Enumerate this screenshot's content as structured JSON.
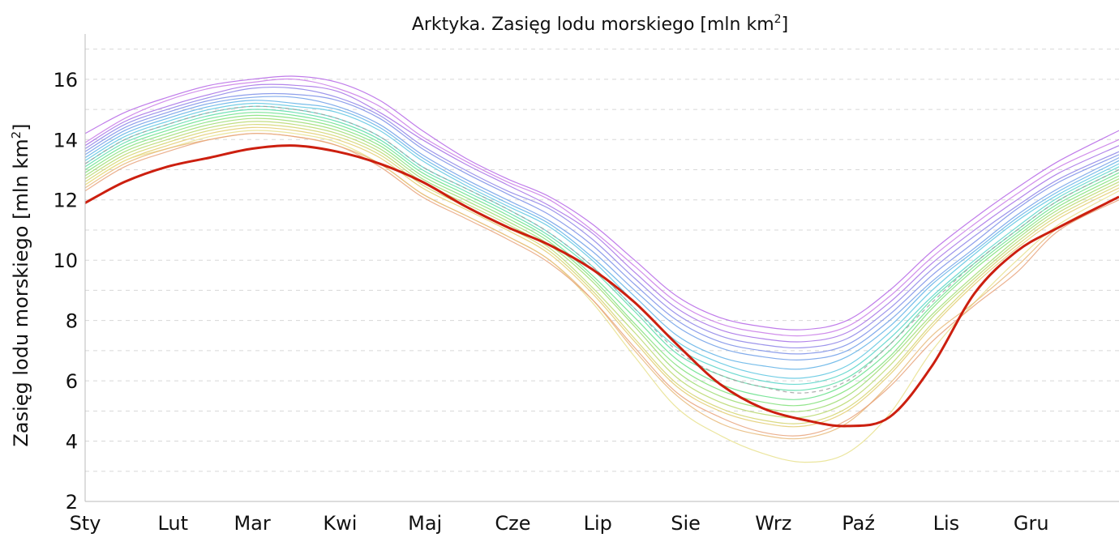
{
  "chart_data": {
    "type": "line",
    "title": "Arktyka. Zasięg lodu morskiego [mln km",
    "title_sup": "2",
    "title_tail": "]",
    "ylabel": "Zasięg lodu morskiego [mln km",
    "ylabel_sup": "2",
    "ylabel_tail": "]",
    "xlabel": "",
    "ylim": [
      2,
      17.5
    ],
    "yticks": [
      2,
      4,
      6,
      8,
      10,
      12,
      14,
      16
    ],
    "xlim": [
      1,
      366
    ],
    "month_labels": [
      "Sty",
      "Lut",
      "Mar",
      "Kwi",
      "Maj",
      "Cze",
      "Lip",
      "Sie",
      "Wrz",
      "Paź",
      "Lis",
      "Gru"
    ],
    "month_days": [
      1,
      32,
      60,
      91,
      121,
      152,
      182,
      213,
      244,
      274,
      305,
      335
    ],
    "grid": "horizontal-dashed",
    "legend": "none",
    "highlight_color": "#cc1f0f",
    "mean_color": "#888888",
    "series_days": [
      1,
      15,
      30,
      45,
      60,
      75,
      90,
      105,
      120,
      135,
      150,
      165,
      180,
      195,
      210,
      225,
      240,
      255,
      270,
      285,
      300,
      315,
      330,
      345,
      366
    ],
    "series": [
      {
        "color": "#b565e6",
        "values": [
          14.2,
          14.9,
          15.4,
          15.8,
          16.0,
          16.1,
          15.9,
          15.3,
          14.3,
          13.4,
          12.7,
          12.1,
          11.2,
          10.0,
          8.8,
          8.1,
          7.8,
          7.7,
          8.0,
          9.0,
          10.3,
          11.4,
          12.4,
          13.3,
          14.3
        ]
      },
      {
        "color": "#c97be8",
        "values": [
          13.9,
          14.7,
          15.3,
          15.7,
          15.9,
          16.0,
          15.7,
          15.1,
          14.1,
          13.3,
          12.6,
          12.0,
          11.0,
          9.8,
          8.6,
          7.9,
          7.6,
          7.5,
          7.8,
          8.8,
          10.1,
          11.2,
          12.2,
          13.1,
          14.0
        ]
      },
      {
        "color": "#a56ee6",
        "values": [
          13.8,
          14.6,
          15.1,
          15.5,
          15.8,
          15.8,
          15.6,
          14.9,
          14.0,
          13.2,
          12.5,
          11.8,
          10.9,
          9.6,
          8.4,
          7.7,
          7.4,
          7.3,
          7.6,
          8.6,
          9.9,
          11.0,
          12.0,
          12.9,
          13.8
        ]
      },
      {
        "color": "#8c82e8",
        "values": [
          13.7,
          14.5,
          15.0,
          15.4,
          15.7,
          15.7,
          15.4,
          14.8,
          13.8,
          13.0,
          12.3,
          11.7,
          10.7,
          9.4,
          8.2,
          7.5,
          7.2,
          7.1,
          7.4,
          8.4,
          9.7,
          10.8,
          11.8,
          12.7,
          13.6
        ]
      },
      {
        "color": "#7a8ee8",
        "values": [
          13.6,
          14.4,
          14.9,
          15.3,
          15.5,
          15.5,
          15.3,
          14.7,
          13.7,
          12.9,
          12.2,
          11.5,
          10.5,
          9.2,
          8.0,
          7.3,
          7.0,
          6.9,
          7.2,
          8.2,
          9.5,
          10.6,
          11.7,
          12.6,
          13.5
        ]
      },
      {
        "color": "#6d9ee8",
        "values": [
          13.5,
          14.3,
          14.8,
          15.2,
          15.4,
          15.4,
          15.1,
          14.5,
          13.5,
          12.7,
          12.0,
          11.3,
          10.3,
          9.0,
          7.8,
          7.1,
          6.8,
          6.7,
          7.0,
          8.0,
          9.3,
          10.4,
          11.5,
          12.4,
          13.4
        ]
      },
      {
        "color": "#5fb2e6",
        "values": [
          13.4,
          14.2,
          14.7,
          15.1,
          15.3,
          15.2,
          15.0,
          14.4,
          13.4,
          12.6,
          11.9,
          11.2,
          10.1,
          8.8,
          7.5,
          6.8,
          6.5,
          6.4,
          6.8,
          7.8,
          9.2,
          10.3,
          11.4,
          12.3,
          13.3
        ]
      },
      {
        "color": "#5cc6e0",
        "values": [
          13.3,
          14.1,
          14.6,
          15.0,
          15.2,
          15.1,
          14.9,
          14.3,
          13.3,
          12.5,
          11.8,
          11.1,
          10.0,
          8.6,
          7.3,
          6.6,
          6.2,
          6.1,
          6.5,
          7.6,
          9.0,
          10.2,
          11.3,
          12.2,
          13.2
        ]
      },
      {
        "color": "#55d4c8",
        "values": [
          13.2,
          14.0,
          14.5,
          14.9,
          15.1,
          15.0,
          14.7,
          14.1,
          13.1,
          12.4,
          11.7,
          10.9,
          9.8,
          8.4,
          7.1,
          6.4,
          6.0,
          5.9,
          6.3,
          7.4,
          8.8,
          10.0,
          11.1,
          12.1,
          13.1
        ]
      },
      {
        "color": "#58dca8",
        "values": [
          13.1,
          13.9,
          14.4,
          14.8,
          15.0,
          14.9,
          14.6,
          14.0,
          13.0,
          12.3,
          11.6,
          10.8,
          9.7,
          8.3,
          6.9,
          6.2,
          5.8,
          5.7,
          6.1,
          7.2,
          8.7,
          9.9,
          11.0,
          12.0,
          13.0
        ]
      },
      {
        "color": "#66e08a",
        "values": [
          13.0,
          13.8,
          14.3,
          14.7,
          14.9,
          14.8,
          14.5,
          13.9,
          12.9,
          12.2,
          11.5,
          10.7,
          9.5,
          8.1,
          6.7,
          5.9,
          5.5,
          5.4,
          5.9,
          7.0,
          8.5,
          9.8,
          10.9,
          11.9,
          12.9
        ]
      },
      {
        "color": "#7fe078",
        "values": [
          12.9,
          13.7,
          14.2,
          14.6,
          14.8,
          14.7,
          14.4,
          13.8,
          12.8,
          12.1,
          11.4,
          10.6,
          9.4,
          7.9,
          6.5,
          5.7,
          5.3,
          5.2,
          5.7,
          6.8,
          8.4,
          9.7,
          10.8,
          11.8,
          12.8
        ]
      },
      {
        "color": "#9cdc70",
        "values": [
          12.8,
          13.6,
          14.1,
          14.5,
          14.7,
          14.6,
          14.3,
          13.7,
          12.7,
          12.0,
          11.3,
          10.5,
          9.3,
          7.8,
          6.3,
          5.5,
          5.1,
          5.0,
          5.5,
          6.7,
          8.2,
          9.5,
          10.7,
          11.7,
          12.7
        ]
      },
      {
        "color": "#b8d86c",
        "values": [
          12.7,
          13.5,
          14.0,
          14.4,
          14.6,
          14.5,
          14.2,
          13.6,
          12.6,
          11.9,
          11.2,
          10.4,
          9.1,
          7.6,
          6.1,
          5.3,
          4.9,
          4.8,
          5.3,
          6.5,
          8.1,
          9.4,
          10.6,
          11.6,
          12.6
        ]
      },
      {
        "color": "#d3d46c",
        "values": [
          12.6,
          13.4,
          13.9,
          14.3,
          14.5,
          14.4,
          14.1,
          13.5,
          12.5,
          11.8,
          11.1,
          10.3,
          9.0,
          7.4,
          5.9,
          5.1,
          4.7,
          4.6,
          5.1,
          6.3,
          7.9,
          9.3,
          10.5,
          11.5,
          12.5
        ]
      },
      {
        "color": "#e3cc70",
        "values": [
          12.5,
          13.3,
          13.8,
          14.2,
          14.4,
          14.3,
          14.0,
          13.4,
          12.4,
          11.7,
          11.0,
          10.2,
          8.9,
          7.3,
          5.8,
          5.0,
          4.6,
          4.5,
          5.0,
          6.2,
          7.8,
          9.2,
          10.4,
          11.4,
          12.4
        ]
      },
      {
        "color": "#e8e08c",
        "values": [
          12.5,
          13.3,
          13.7,
          14.1,
          14.3,
          14.2,
          13.9,
          13.2,
          12.2,
          11.5,
          10.8,
          10.0,
          8.6,
          6.8,
          5.1,
          4.2,
          3.6,
          3.3,
          3.6,
          4.9,
          7.0,
          8.6,
          10.0,
          11.2,
          12.3
        ]
      },
      {
        "color": "#e8b878",
        "values": [
          12.4,
          13.2,
          13.7,
          14.0,
          14.2,
          14.1,
          13.8,
          13.2,
          12.2,
          11.5,
          10.8,
          10.0,
          8.7,
          7.0,
          5.5,
          4.6,
          4.2,
          4.1,
          4.6,
          5.9,
          7.5,
          8.6,
          9.8,
          11.1,
          12.1
        ]
      },
      {
        "color": "#e8a27a",
        "values": [
          12.3,
          13.1,
          13.6,
          14.0,
          14.2,
          14.1,
          13.8,
          13.1,
          12.1,
          11.4,
          10.7,
          9.9,
          8.7,
          7.1,
          5.6,
          4.8,
          4.3,
          4.2,
          4.7,
          5.8,
          7.3,
          8.5,
          9.6,
          11.0,
          12.0
        ]
      },
      {
        "color": "#a0a0a0",
        "values": [
          13.2,
          14.0,
          14.5,
          14.9,
          15.1,
          15.0,
          14.7,
          14.1,
          13.1,
          12.4,
          11.7,
          10.9,
          9.8,
          8.4,
          7.0,
          6.2,
          5.8,
          5.6,
          6.0,
          7.2,
          8.6,
          9.9,
          11.0,
          12.0,
          13.0
        ],
        "dashed": true
      },
      {
        "color": "#cc1f0f",
        "highlight": true,
        "values": [
          11.9,
          12.6,
          13.1,
          13.4,
          13.7,
          13.8,
          13.6,
          13.2,
          12.6,
          11.8,
          11.1,
          10.5,
          9.7,
          8.6,
          7.2,
          5.9,
          5.1,
          4.7,
          4.5,
          4.8,
          6.5,
          8.9,
          10.3,
          11.1,
          12.1
        ]
      }
    ]
  }
}
